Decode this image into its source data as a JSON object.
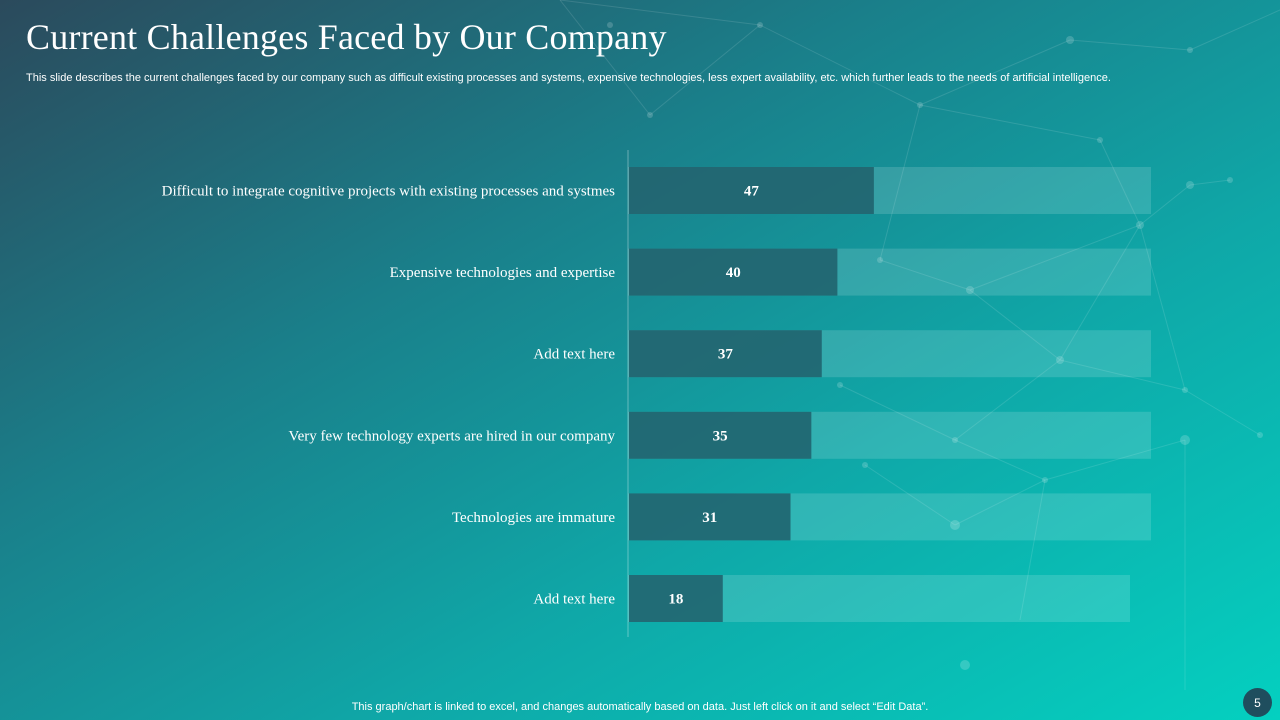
{
  "slide": {
    "title": "Current Challenges Faced by Our Company",
    "subtitle": "This slide describes the current challenges faced by our company such as difficult existing processes and systems, expensive technologies, less expert availability, etc. which further leads to the needs of artificial intelligence.",
    "footer_note": "This graph/chart is linked to excel, and changes automatically based on data. Just left click on it and select “Edit Data”.",
    "page_number": "5"
  },
  "colors": {
    "bar_fill": "#1f5f6b",
    "bar_track": "#ffffff",
    "text": "#ffffff"
  },
  "chart_data": {
    "type": "bar",
    "orientation": "horizontal",
    "categories": [
      "Difficult to integrate cognitive projects with existing processes and systmes",
      "Expensive technologies and expertise",
      "Add text here",
      "Very few technology experts are hired in our company",
      "Technologies are immature",
      "Add text here"
    ],
    "values": [
      47,
      40,
      37,
      35,
      31,
      18
    ],
    "data_labels": [
      "47",
      "40",
      "37",
      "35",
      "31",
      "18"
    ],
    "background_bar": "full-width light band behind each bar",
    "grid": false,
    "legend": "none"
  }
}
